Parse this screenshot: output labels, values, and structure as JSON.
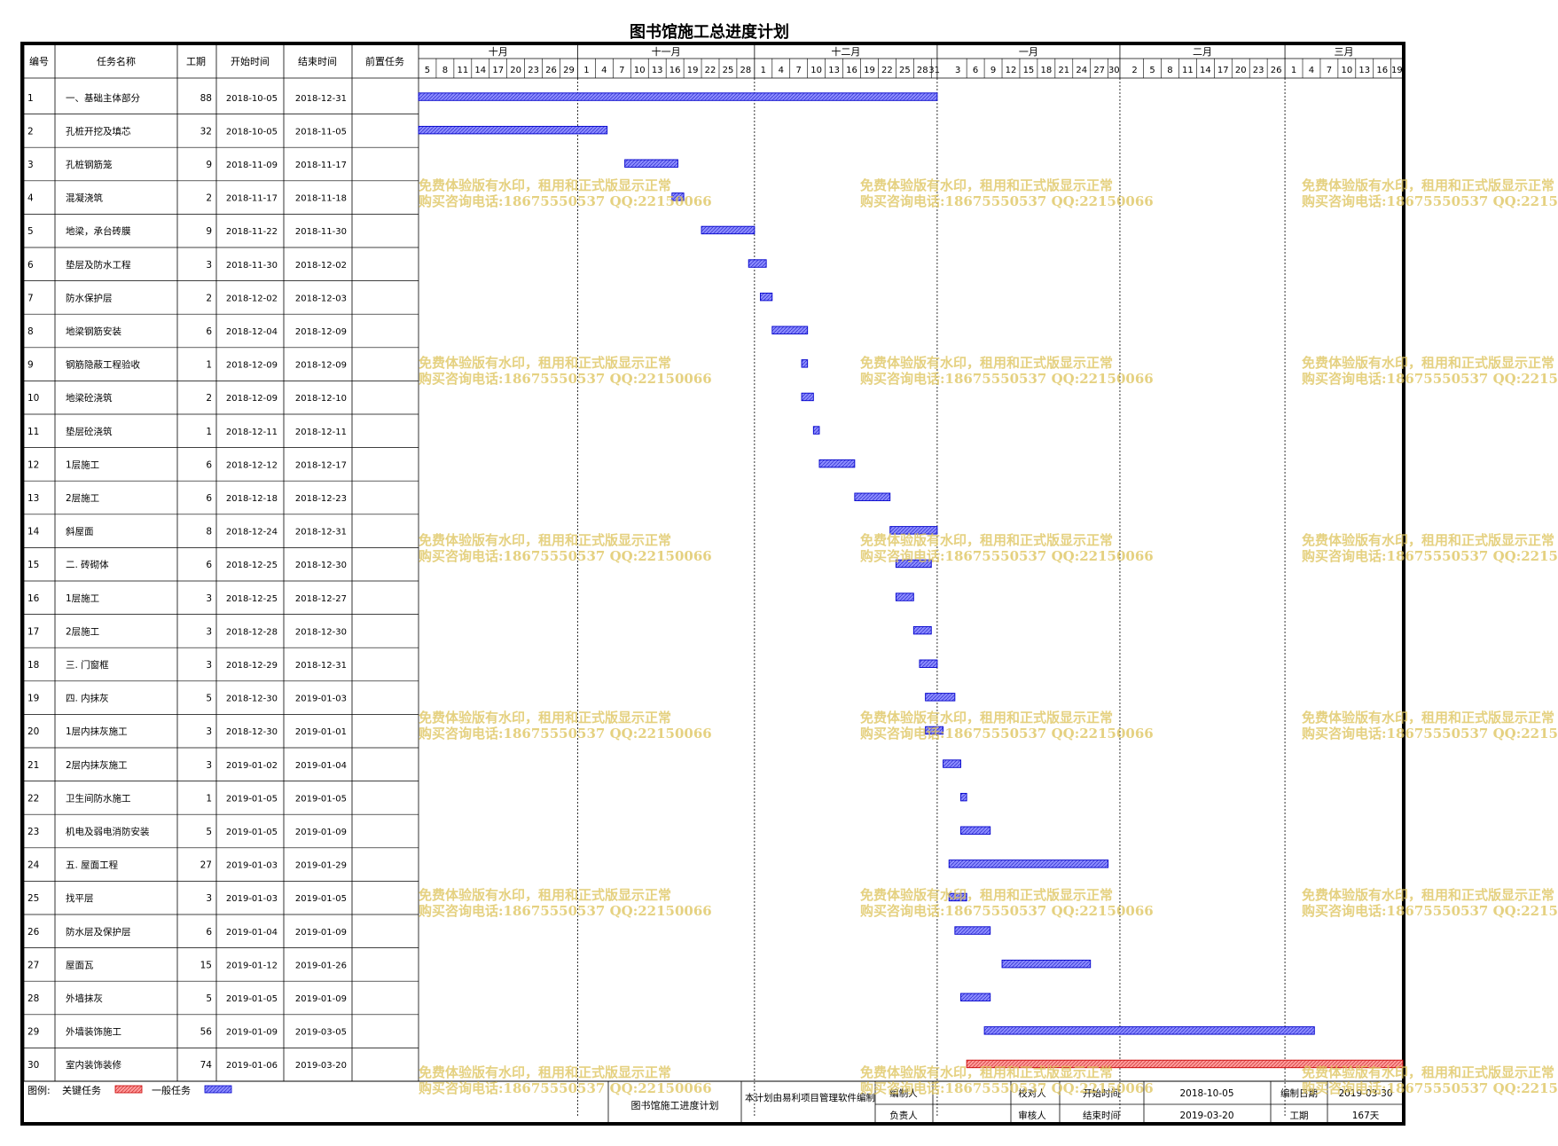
{
  "title": "图书馆施工总进度计划",
  "table_headers": [
    "编号",
    "任务名称",
    "工期",
    "开始时间",
    "结束时间",
    "前置任务"
  ],
  "legend": {
    "label": "图例:",
    "critical": "关键任务",
    "normal": "一般任务"
  },
  "footer": {
    "plan_name": "图书馆施工进度计划",
    "note": "本计划由易利项目管理软件编制",
    "labels": {
      "compiler": "编制人",
      "checker": "校对人",
      "owner": "负责人",
      "reviewer": "审核人",
      "start": "开始时间",
      "end": "结束时间",
      "date": "编制日期",
      "duration": "工期"
    },
    "values": {
      "start": "2018-10-05",
      "end": "2019-03-20",
      "date": "2019-03-30",
      "duration": "167天"
    }
  },
  "watermark": {
    "line1": "免费体验版有水印，租用和正式版显示正常",
    "line2": "购买咨询电话:18675550537 QQ:22150066"
  },
  "colors": {
    "critical": "#ff8c8c",
    "normal": "#8b8bff",
    "bar_border": "#0000cc",
    "critical_border": "#cc0000"
  },
  "chart_data": {
    "type": "gantt",
    "title": "图书馆施工总进度计划",
    "timeline_start": "2018-10-05",
    "timeline_end": "2019-03-20",
    "months": [
      {
        "label": "十月",
        "days": [
          "5",
          "8",
          "11",
          "14",
          "17",
          "20",
          "23",
          "26",
          "29"
        ]
      },
      {
        "label": "十一月",
        "days": [
          "1",
          "4",
          "7",
          "10",
          "13",
          "16",
          "19",
          "22",
          "25",
          "28"
        ]
      },
      {
        "label": "十二月",
        "days": [
          "1",
          "4",
          "7",
          "10",
          "13",
          "16",
          "19",
          "22",
          "25",
          "28",
          "31"
        ]
      },
      {
        "label": "一月",
        "days": [
          "3",
          "6",
          "9",
          "12",
          "15",
          "18",
          "21",
          "24",
          "27",
          "30"
        ]
      },
      {
        "label": "二月",
        "days": [
          "2",
          "5",
          "8",
          "11",
          "14",
          "17",
          "20",
          "23",
          "26"
        ]
      },
      {
        "label": "三月",
        "days": [
          "1",
          "4",
          "7",
          "10",
          "13",
          "16",
          "19"
        ]
      }
    ],
    "tasks": [
      {
        "id": "1",
        "name": "一、基础主体部分",
        "duration": "88",
        "start": "2018-10-05",
        "end": "2018-12-31",
        "pred": "",
        "critical": false
      },
      {
        "id": "2",
        "name": "孔桩开挖及填芯",
        "duration": "32",
        "start": "2018-10-05",
        "end": "2018-11-05",
        "pred": "",
        "critical": false
      },
      {
        "id": "3",
        "name": "孔桩钢筋笼",
        "duration": "9",
        "start": "2018-11-09",
        "end": "2018-11-17",
        "pred": "",
        "critical": false
      },
      {
        "id": "4",
        "name": "混凝浇筑",
        "duration": "2",
        "start": "2018-11-17",
        "end": "2018-11-18",
        "pred": "",
        "critical": false
      },
      {
        "id": "5",
        "name": "地梁，承台砖膜",
        "duration": "9",
        "start": "2018-11-22",
        "end": "2018-11-30",
        "pred": "",
        "critical": false
      },
      {
        "id": "6",
        "name": "垫层及防水工程",
        "duration": "3",
        "start": "2018-11-30",
        "end": "2018-12-02",
        "pred": "",
        "critical": false
      },
      {
        "id": "7",
        "name": "防水保护层",
        "duration": "2",
        "start": "2018-12-02",
        "end": "2018-12-03",
        "pred": "",
        "critical": false
      },
      {
        "id": "8",
        "name": "地梁钢筋安装",
        "duration": "6",
        "start": "2018-12-04",
        "end": "2018-12-09",
        "pred": "",
        "critical": false
      },
      {
        "id": "9",
        "name": "钢筋隐蔽工程验收",
        "duration": "1",
        "start": "2018-12-09",
        "end": "2018-12-09",
        "pred": "",
        "critical": false
      },
      {
        "id": "10",
        "name": "地梁砼浇筑",
        "duration": "2",
        "start": "2018-12-09",
        "end": "2018-12-10",
        "pred": "",
        "critical": false
      },
      {
        "id": "11",
        "name": "垫层砼浇筑",
        "duration": "1",
        "start": "2018-12-11",
        "end": "2018-12-11",
        "pred": "",
        "critical": false
      },
      {
        "id": "12",
        "name": "1层施工",
        "duration": "6",
        "start": "2018-12-12",
        "end": "2018-12-17",
        "pred": "",
        "critical": false
      },
      {
        "id": "13",
        "name": "2层施工",
        "duration": "6",
        "start": "2018-12-18",
        "end": "2018-12-23",
        "pred": "",
        "critical": false
      },
      {
        "id": "14",
        "name": "斜屋面",
        "duration": "8",
        "start": "2018-12-24",
        "end": "2018-12-31",
        "pred": "",
        "critical": false
      },
      {
        "id": "15",
        "name": "二. 砖砌体",
        "duration": "6",
        "start": "2018-12-25",
        "end": "2018-12-30",
        "pred": "",
        "critical": false
      },
      {
        "id": "16",
        "name": "1层施工",
        "duration": "3",
        "start": "2018-12-25",
        "end": "2018-12-27",
        "pred": "",
        "critical": false
      },
      {
        "id": "17",
        "name": "2层施工",
        "duration": "3",
        "start": "2018-12-28",
        "end": "2018-12-30",
        "pred": "",
        "critical": false
      },
      {
        "id": "18",
        "name": "三. 门窗框",
        "duration": "3",
        "start": "2018-12-29",
        "end": "2018-12-31",
        "pred": "",
        "critical": false
      },
      {
        "id": "19",
        "name": "四. 内抹灰",
        "duration": "5",
        "start": "2018-12-30",
        "end": "2019-01-03",
        "pred": "",
        "critical": false
      },
      {
        "id": "20",
        "name": "1层内抹灰施工",
        "duration": "3",
        "start": "2018-12-30",
        "end": "2019-01-01",
        "pred": "",
        "critical": false
      },
      {
        "id": "21",
        "name": "2层内抹灰施工",
        "duration": "3",
        "start": "2019-01-02",
        "end": "2019-01-04",
        "pred": "",
        "critical": false
      },
      {
        "id": "22",
        "name": "卫生间防水施工",
        "duration": "1",
        "start": "2019-01-05",
        "end": "2019-01-05",
        "pred": "",
        "critical": false
      },
      {
        "id": "23",
        "name": "机电及弱电消防安装",
        "duration": "5",
        "start": "2019-01-05",
        "end": "2019-01-09",
        "pred": "",
        "critical": false
      },
      {
        "id": "24",
        "name": "五. 屋面工程",
        "duration": "27",
        "start": "2019-01-03",
        "end": "2019-01-29",
        "pred": "",
        "critical": false
      },
      {
        "id": "25",
        "name": "找平层",
        "duration": "3",
        "start": "2019-01-03",
        "end": "2019-01-05",
        "pred": "",
        "critical": false
      },
      {
        "id": "26",
        "name": "防水层及保护层",
        "duration": "6",
        "start": "2019-01-04",
        "end": "2019-01-09",
        "pred": "",
        "critical": false
      },
      {
        "id": "27",
        "name": "屋面瓦",
        "duration": "15",
        "start": "2019-01-12",
        "end": "2019-01-26",
        "pred": "",
        "critical": false
      },
      {
        "id": "28",
        "name": "外墙抹灰",
        "duration": "5",
        "start": "2019-01-05",
        "end": "2019-01-09",
        "pred": "",
        "critical": false
      },
      {
        "id": "29",
        "name": "外墙装饰施工",
        "duration": "56",
        "start": "2019-01-09",
        "end": "2019-03-05",
        "pred": "",
        "critical": false
      },
      {
        "id": "30",
        "name": "室内装饰装修",
        "duration": "74",
        "start": "2019-01-06",
        "end": "2019-03-20",
        "pred": "",
        "critical": true
      }
    ]
  }
}
